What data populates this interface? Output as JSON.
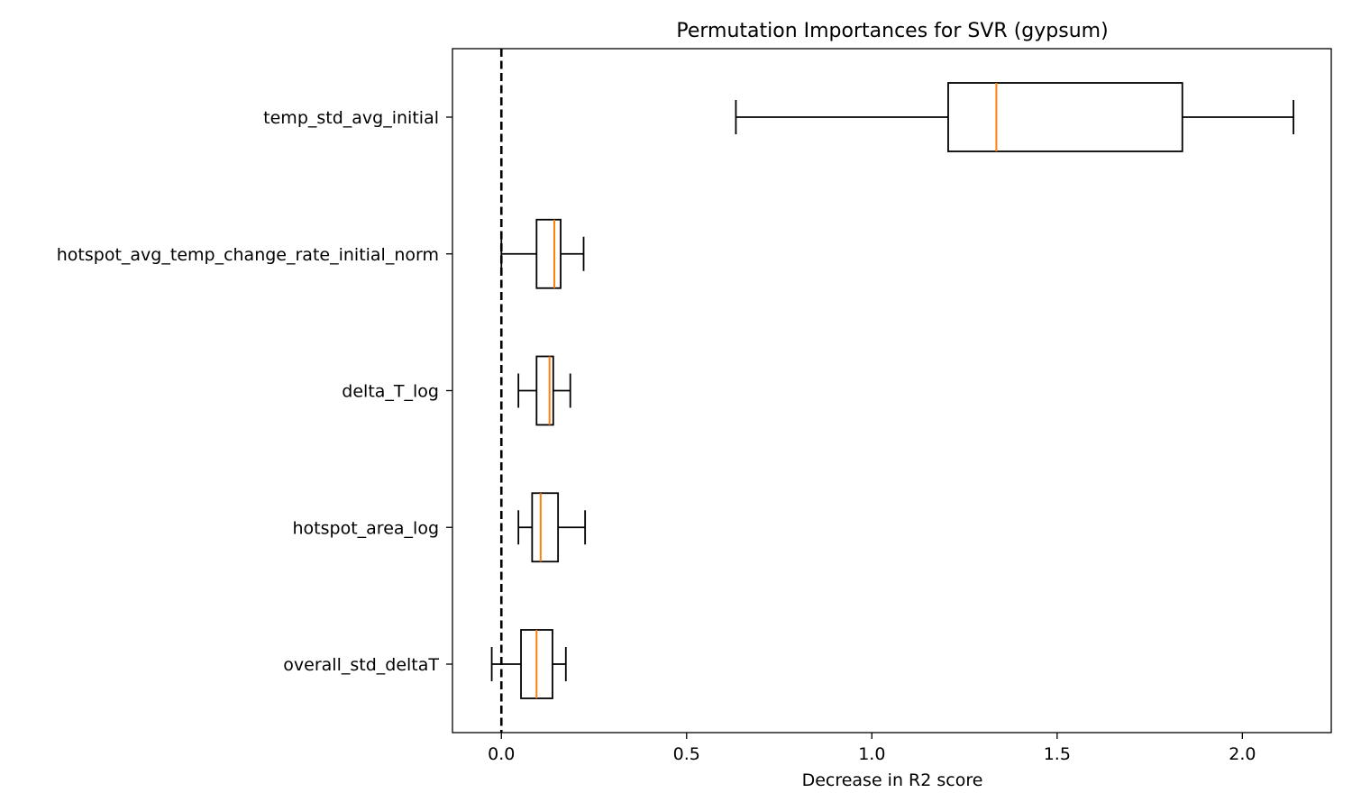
{
  "chart_data": {
    "type": "boxplot",
    "orientation": "horizontal",
    "title": "Permutation Importances for SVR (gypsum)",
    "xlabel": "Decrease in R2 score",
    "ylabel": "",
    "xlim": [
      -0.132,
      2.24
    ],
    "x_ticks": [
      0.0,
      0.5,
      1.0,
      1.5,
      2.0
    ],
    "x_tick_labels": [
      "0.0",
      "0.5",
      "1.0",
      "1.5",
      "2.0"
    ],
    "reference_line": {
      "x": 0.0,
      "style": "dashed",
      "color": "#000000"
    },
    "grid": false,
    "legend": "none",
    "box_color": "#000000",
    "median_color": "#ff7f0e",
    "categories": [
      "overall_std_deltaT",
      "hotspot_area_log",
      "delta_T_log",
      "hotspot_avg_temp_change_rate_initial_norm",
      "temp_std_avg_initial"
    ],
    "boxes": [
      {
        "name": "overall_std_deltaT",
        "whisker_low": -0.026,
        "q1": 0.053,
        "median": 0.095,
        "q3": 0.138,
        "whisker_high": 0.174
      },
      {
        "name": "hotspot_area_log",
        "whisker_low": 0.046,
        "q1": 0.083,
        "median": 0.106,
        "q3": 0.153,
        "whisker_high": 0.226
      },
      {
        "name": "delta_T_log",
        "whisker_low": 0.046,
        "q1": 0.095,
        "median": 0.13,
        "q3": 0.14,
        "whisker_high": 0.186
      },
      {
        "name": "hotspot_avg_temp_change_rate_initial_norm",
        "whisker_low": 0.0,
        "q1": 0.095,
        "median": 0.143,
        "q3": 0.16,
        "whisker_high": 0.222
      },
      {
        "name": "temp_std_avg_initial",
        "whisker_low": 0.633,
        "q1": 1.206,
        "median": 1.336,
        "q3": 1.838,
        "whisker_high": 2.138
      }
    ]
  }
}
